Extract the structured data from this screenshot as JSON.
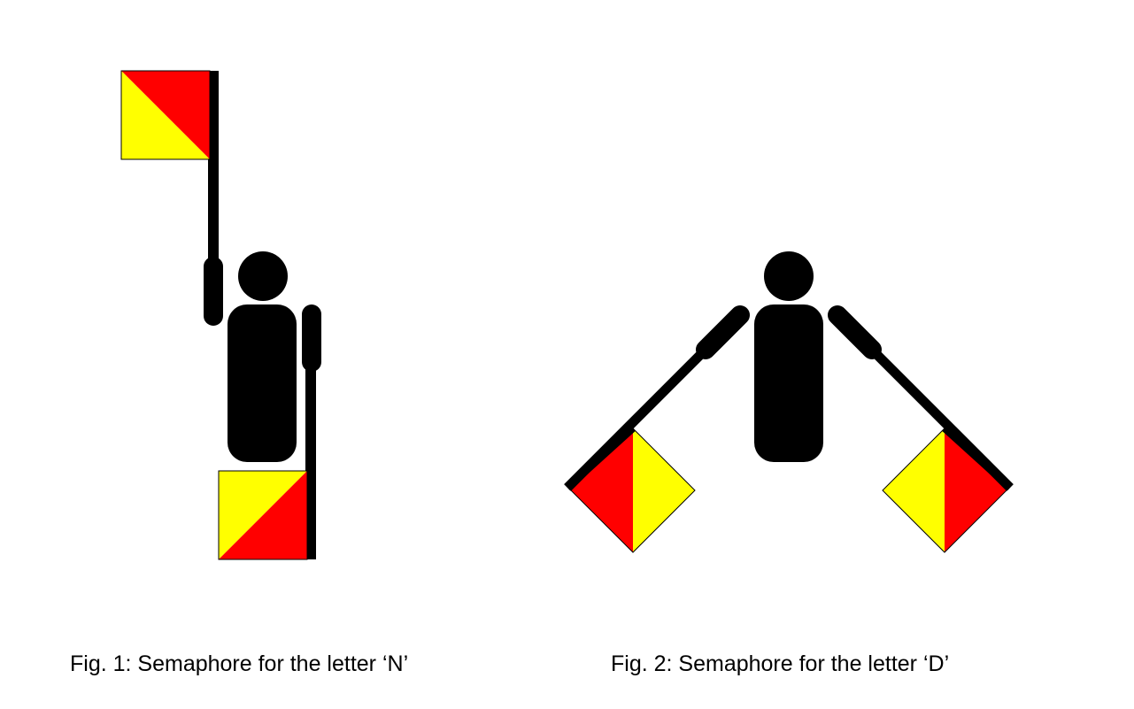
{
  "figures": [
    {
      "caption": "Fig. 1: Semaphore for the letter ‘N’",
      "letter": "N"
    },
    {
      "caption": "Fig. 2: Semaphore for the letter ‘D’",
      "letter": "D"
    }
  ],
  "colors": {
    "flag_red": "#ff0000",
    "flag_yellow": "#ffff00",
    "figure": "#000000",
    "background": "#ffffff"
  }
}
